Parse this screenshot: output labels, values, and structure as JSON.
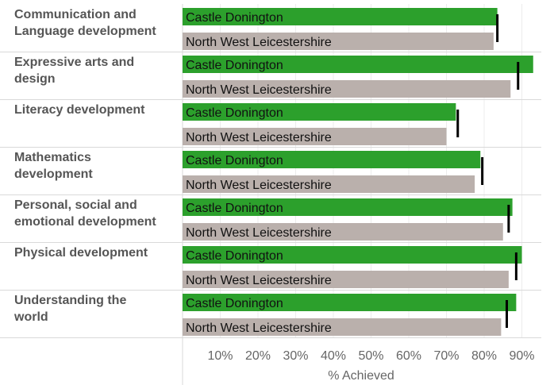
{
  "chart_data": {
    "type": "bar",
    "orientation": "horizontal",
    "xlabel": "% Achieved",
    "xlim": [
      0,
      95
    ],
    "xticks": [
      10,
      20,
      30,
      40,
      50,
      60,
      70,
      80,
      90
    ],
    "tick_suffix": "%",
    "categories": [
      [
        "Communication and",
        "Language development"
      ],
      [
        "Expressive arts and",
        "design"
      ],
      [
        "Literacy development"
      ],
      [
        "Mathematics",
        "development"
      ],
      [
        "Personal, social and",
        "emotional development"
      ],
      [
        "Physical development"
      ],
      [
        "Understanding the",
        "world"
      ]
    ],
    "series": [
      {
        "name": "Castle Donington",
        "color": "#2ca02c",
        "values": [
          83.5,
          93,
          72.5,
          79,
          87.5,
          90,
          88.5
        ]
      },
      {
        "name": "North West Leicestershire",
        "color": "#bab0ac",
        "values": [
          82.5,
          87,
          70,
          77.5,
          85,
          86.5,
          84.5
        ]
      }
    ],
    "reference_markers": {
      "color": "#000000",
      "values": [
        83.5,
        89,
        73,
        79.5,
        86.5,
        88.5,
        86
      ]
    }
  }
}
